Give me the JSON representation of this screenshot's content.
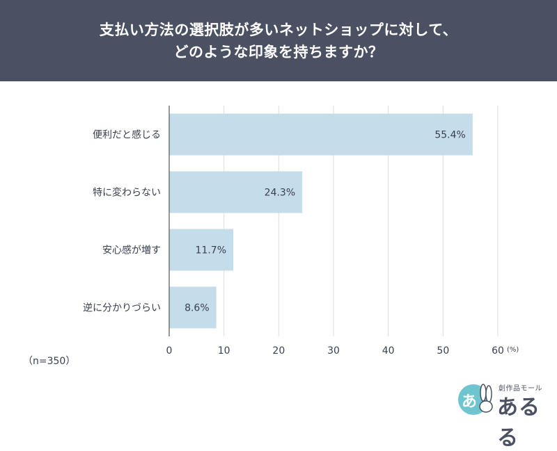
{
  "header": {
    "title_line1": "支払い方法の選択肢が多いネットショップに対して、",
    "title_line2": "どのような印象を持ちますか？"
  },
  "chart_data": {
    "type": "bar",
    "orientation": "horizontal",
    "categories": [
      "便利だと感じる",
      "特に変わらない",
      "安心感が増す",
      "逆に分かりづらい"
    ],
    "values": [
      55.4,
      24.3,
      11.7,
      8.6
    ],
    "data_labels": [
      "55.4%",
      "24.3%",
      "11.7%",
      "8.6%"
    ],
    "xlim": [
      0,
      60
    ],
    "xticks": [
      0,
      10,
      20,
      30,
      40,
      50,
      60
    ],
    "x_unit": "(%)",
    "grid": true,
    "bar_color": "#c5dcea"
  },
  "sample_size": "（n=350）",
  "logo": {
    "caption": "創作品モール",
    "brand": "あるる",
    "mark_glyph": "あ",
    "mark_color": "#6fc5cf"
  }
}
